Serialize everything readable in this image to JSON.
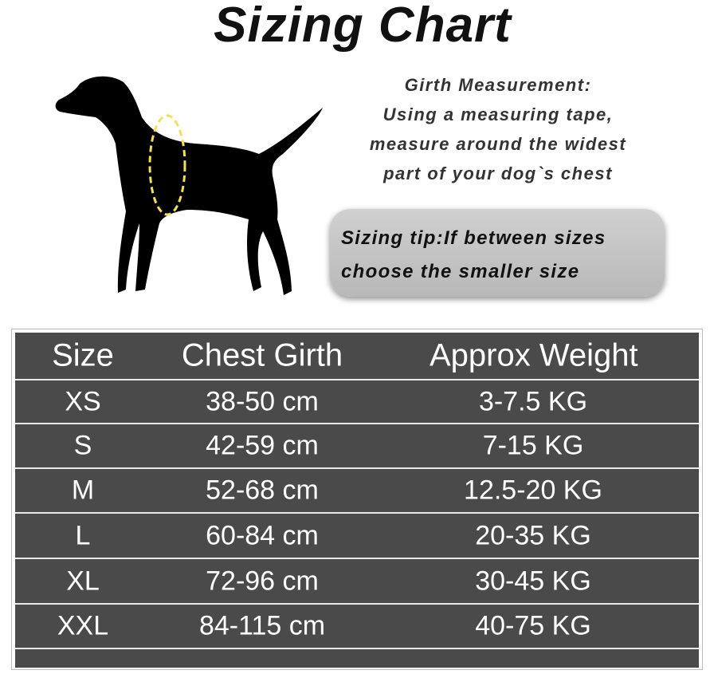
{
  "title": "Sizing Chart",
  "girth": {
    "heading": "Girth Measurement:",
    "lines": [
      "Using a measuring tape,",
      "measure around the widest",
      "part of your dog`s chest"
    ]
  },
  "tip": {
    "line1": "Sizing tip:If between sizes",
    "line2": "choose the smaller size"
  },
  "table": {
    "headers": [
      "Size",
      "Chest Girth",
      "Approx Weight"
    ],
    "rows": [
      {
        "size": "XS",
        "chest": "38-50 cm",
        "weight": "3-7.5 KG"
      },
      {
        "size": "S",
        "chest": "42-59 cm",
        "weight": "7-15 KG"
      },
      {
        "size": "M",
        "chest": "52-68 cm",
        "weight": "12.5-20 KG"
      },
      {
        "size": "L",
        "chest": "60-84 cm",
        "weight": "20-35 KG"
      },
      {
        "size": "XL",
        "chest": "72-96 cm",
        "weight": "30-45 KG"
      },
      {
        "size": "XXL",
        "chest": "84-115 cm",
        "weight": "40-75 KG"
      }
    ]
  },
  "colors": {
    "table_bg": "#4a4a4a",
    "tip_bg": "#c4c4c4",
    "tape": "#f0e060"
  }
}
